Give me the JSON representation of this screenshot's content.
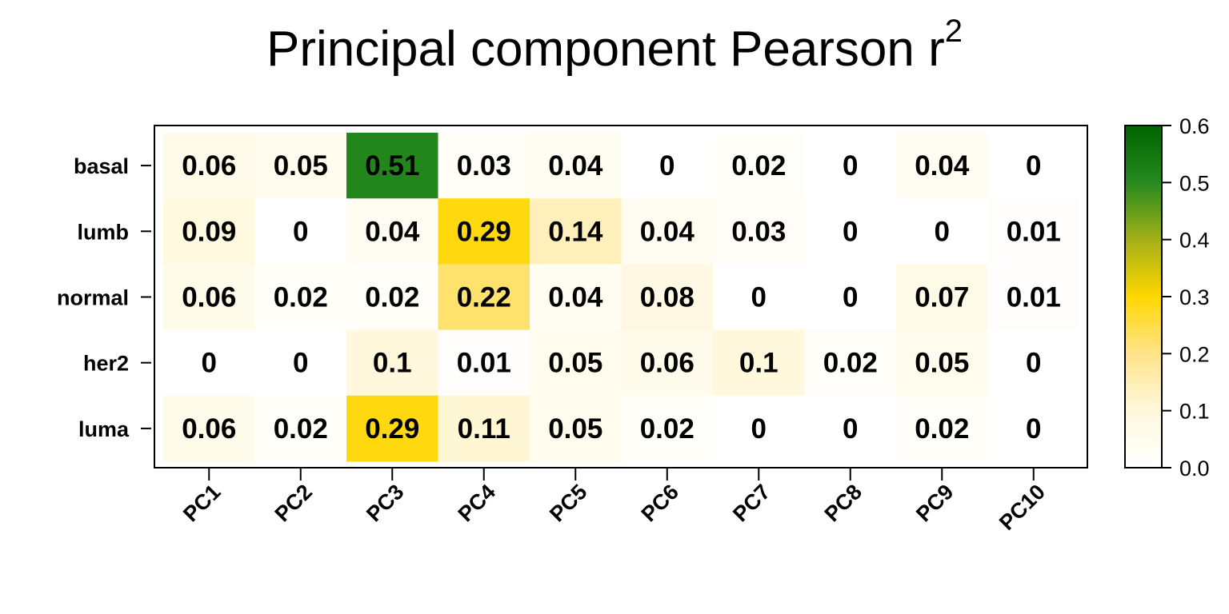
{
  "chart_data": {
    "type": "heatmap",
    "title": "Principal component Pearson r",
    "title_superscript": "2",
    "rows": [
      "basal",
      "lumb",
      "normal",
      "her2",
      "luma"
    ],
    "columns": [
      "PC1",
      "PC2",
      "PC3",
      "PC4",
      "PC5",
      "PC6",
      "PC7",
      "PC8",
      "PC9",
      "PC10"
    ],
    "values": [
      [
        0.06,
        0.05,
        0.51,
        0.03,
        0.04,
        0,
        0.02,
        0,
        0.04,
        0
      ],
      [
        0.09,
        0,
        0.04,
        0.29,
        0.14,
        0.04,
        0.03,
        0,
        0,
        0.01
      ],
      [
        0.06,
        0.02,
        0.02,
        0.22,
        0.04,
        0.08,
        0,
        0,
        0.07,
        0.01
      ],
      [
        0,
        0,
        0.1,
        0.01,
        0.05,
        0.06,
        0.1,
        0.02,
        0.05,
        0
      ],
      [
        0.06,
        0.02,
        0.29,
        0.11,
        0.05,
        0.02,
        0,
        0,
        0.02,
        0
      ]
    ],
    "colorbar": {
      "range": [
        0,
        0.6
      ],
      "ticks": [
        "0.0",
        "0.1",
        "0.2",
        "0.3",
        "0.4",
        "0.5",
        "0.6"
      ],
      "colors": [
        "#ffffff",
        "#fff8dc",
        "#ffe38a",
        "#ffd700",
        "#a4b018",
        "#268a20",
        "#006400"
      ]
    }
  }
}
